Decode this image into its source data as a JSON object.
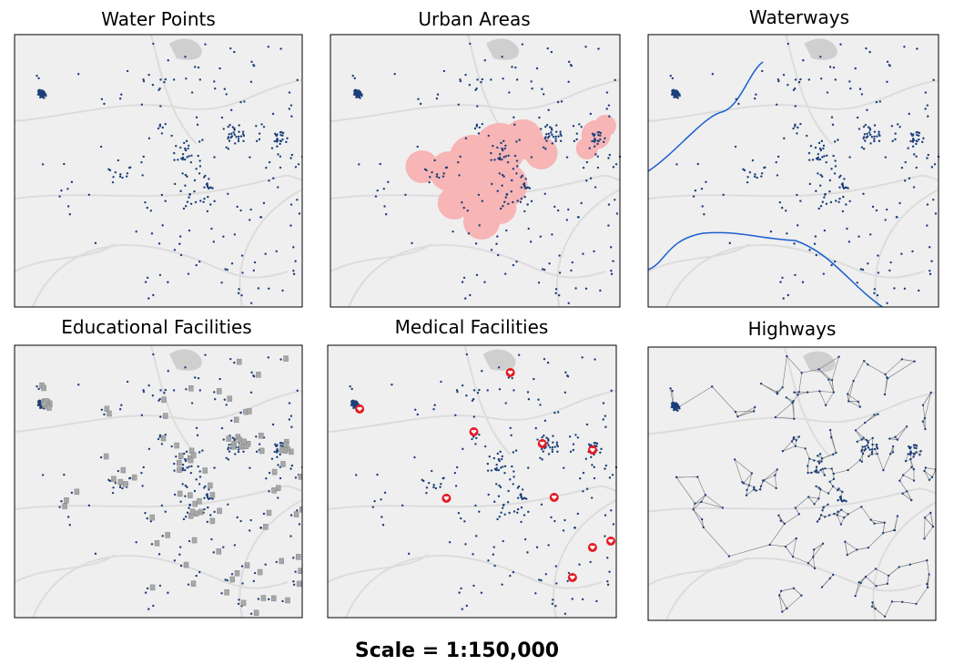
{
  "panels": [
    {
      "title": "Water Points"
    },
    {
      "title": "Urban Areas"
    },
    {
      "title": "Waterways"
    },
    {
      "title": "Educational Facilities"
    },
    {
      "title": "Medical Facilities"
    },
    {
      "title": "Highways"
    }
  ],
  "scale": "Scale = 1:150,000"
}
